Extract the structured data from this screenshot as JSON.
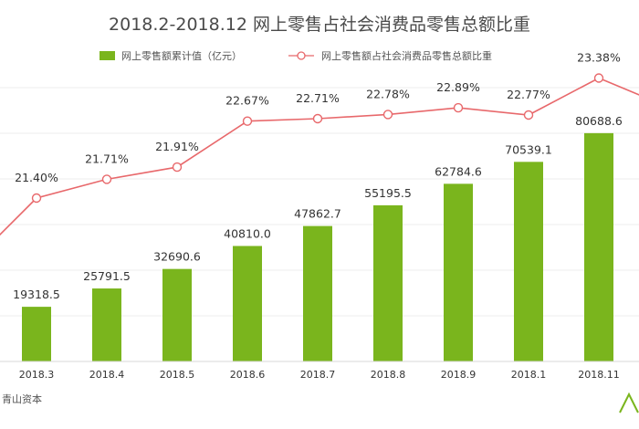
{
  "chart_data": {
    "type": "bar",
    "title": "2018.2-2018.12 网上零售占社会消费品零售总额比重",
    "categories": [
      "2018.3",
      "2018.4",
      "2018.5",
      "2018.6",
      "2018.7",
      "2018.8",
      "2018.9",
      "2018.1",
      "2018.11"
    ],
    "series": [
      {
        "name": "网上零售额累计值（亿元）",
        "type": "bar",
        "values": [
          19318.5,
          25791.5,
          32690.6,
          40810.0,
          47862.7,
          55195.5,
          62784.6,
          70539.1,
          80688.6
        ],
        "labels": [
          "19318.5",
          "25791.5",
          "32690.6",
          "40810.0",
          "47862.7",
          "55195.5",
          "62784.6",
          "70539.1",
          "80688.6"
        ],
        "color": "#7ab51d"
      },
      {
        "name": "网上零售额占社会消费品零售总额比重",
        "type": "line",
        "values": [
          21.4,
          21.71,
          21.91,
          22.67,
          22.71,
          22.78,
          22.89,
          22.77,
          23.38
        ],
        "labels": [
          "21.40%",
          "21.71%",
          "21.91%",
          "22.67%",
          "22.71%",
          "22.78%",
          "22.89%",
          "22.77%",
          "23.38%"
        ],
        "color": "#e8686b"
      }
    ],
    "legend_position": "top-center",
    "grid": true
  },
  "footer": {
    "source": "青山资本"
  }
}
